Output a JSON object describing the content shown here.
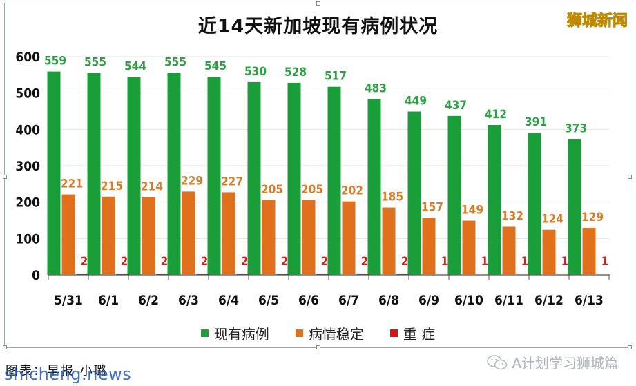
{
  "title": "近14天新加坡现有病例状况",
  "watermark": "狮城新闻",
  "caption": "图表：早报 小璐",
  "caption_overlay": "shicheng.news",
  "wechat_source": "A计划学习狮城篇",
  "colors": {
    "current_cases": "#1a9e3a",
    "stable": "#e0701c",
    "serious": "#e01010",
    "label_green": "#2aa043",
    "label_orange": "#d97a26",
    "label_red": "#d81e1e"
  },
  "chart_data": {
    "type": "bar",
    "categories": [
      "5/31",
      "6/1",
      "6/2",
      "6/3",
      "6/4",
      "6/5",
      "6/6",
      "6/7",
      "6/8",
      "6/9",
      "6/10",
      "6/11",
      "6/12",
      "6/13"
    ],
    "series": [
      {
        "name": "现有病例",
        "values": [
          559,
          555,
          544,
          555,
          545,
          530,
          528,
          517,
          483,
          449,
          437,
          412,
          391,
          373
        ]
      },
      {
        "name": "病情稳定",
        "values": [
          221,
          215,
          214,
          229,
          227,
          205,
          205,
          202,
          185,
          157,
          149,
          132,
          124,
          129
        ]
      },
      {
        "name": "重 症",
        "values": [
          2,
          2,
          2,
          2,
          2,
          2,
          2,
          2,
          2,
          1,
          1,
          1,
          1,
          1
        ]
      }
    ],
    "yticks": [
      0,
      100,
      200,
      300,
      400,
      500,
      600
    ],
    "ylim": [
      0,
      600
    ],
    "grid": true,
    "legend": "bottom-center"
  }
}
